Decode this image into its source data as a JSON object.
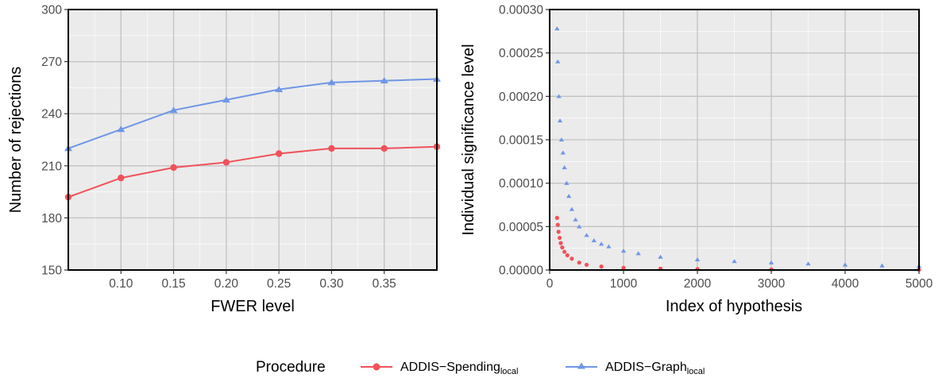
{
  "chart_data": [
    {
      "type": "line",
      "xlabel": "FWER level",
      "ylabel": "Number of rejections",
      "xlim": [
        0.05,
        0.4
      ],
      "ylim": [
        150,
        300
      ],
      "xticks": [
        "0.10",
        "0.15",
        "0.20",
        "0.25",
        "0.30",
        "0.35"
      ],
      "yticks": [
        "150",
        "180",
        "210",
        "240",
        "270",
        "300"
      ],
      "grid": true,
      "x": [
        0.05,
        0.1,
        0.15,
        0.2,
        0.25,
        0.3,
        0.35,
        0.4
      ],
      "series": [
        {
          "name": "ADDIS-Spending_local",
          "marker": "circle",
          "color": "#f0525a",
          "values": [
            192,
            203,
            209,
            212,
            217,
            220,
            220,
            221
          ]
        },
        {
          "name": "ADDIS-Graph_local",
          "marker": "triangle",
          "color": "#6f96e6",
          "values": [
            220,
            231,
            242,
            248,
            254,
            258,
            259,
            260
          ]
        }
      ]
    },
    {
      "type": "scatter",
      "xlabel": "Index of hypothesis",
      "ylabel": "Individual significance level",
      "xlim": [
        0,
        5000
      ],
      "ylim": [
        0,
        0.0003
      ],
      "xticks": [
        "0",
        "1000",
        "2000",
        "3000",
        "4000",
        "5000"
      ],
      "yticks": [
        "0.00000",
        "0.00005",
        "0.00010",
        "0.00015",
        "0.00020",
        "0.00025",
        "0.00030"
      ],
      "grid": true,
      "series": [
        {
          "name": "ADDIS-Spending_local",
          "marker": "circle",
          "color": "#f0525a",
          "x": [
            100,
            110,
            120,
            135,
            150,
            170,
            200,
            240,
            300,
            400,
            500,
            700,
            1000,
            1500,
            2000,
            3000,
            5000
          ],
          "values": [
            6e-05,
            5.2e-05,
            4.4e-05,
            3.7e-05,
            3.1e-05,
            2.6e-05,
            2.1e-05,
            1.7e-05,
            1.3e-05,
            8.5e-06,
            6e-06,
            4e-06,
            2.5e-06,
            1.5e-06,
            1e-06,
            6e-07,
            3e-07
          ]
        },
        {
          "name": "ADDIS-Graph_local",
          "marker": "triangle",
          "color": "#6f96e6",
          "x": [
            100,
            110,
            125,
            140,
            160,
            180,
            200,
            230,
            260,
            300,
            350,
            400,
            500,
            600,
            700,
            800,
            1000,
            1200,
            1500,
            2000,
            2500,
            3000,
            3500,
            4000,
            4500,
            5000
          ],
          "values": [
            0.000278,
            0.00024,
            0.0002,
            0.000172,
            0.00015,
            0.000135,
            0.000118,
            0.0001,
            8.5e-05,
            7e-05,
            5.8e-05,
            5e-05,
            4e-05,
            3.4e-05,
            3e-05,
            2.7e-05,
            2.2e-05,
            1.9e-05,
            1.5e-05,
            1.2e-05,
            1e-05,
            8.5e-06,
            7.2e-06,
            6e-06,
            5e-06,
            4.5e-06
          ]
        }
      ]
    }
  ],
  "legend": {
    "title": "Procedure",
    "placement": "bottom",
    "items": [
      {
        "base": "ADDIS−Spending",
        "sub": "local",
        "color": "#f0525a",
        "marker": "circle"
      },
      {
        "base": "ADDIS−Graph",
        "sub": "local",
        "color": "#6f96e6",
        "marker": "triangle"
      }
    ]
  }
}
